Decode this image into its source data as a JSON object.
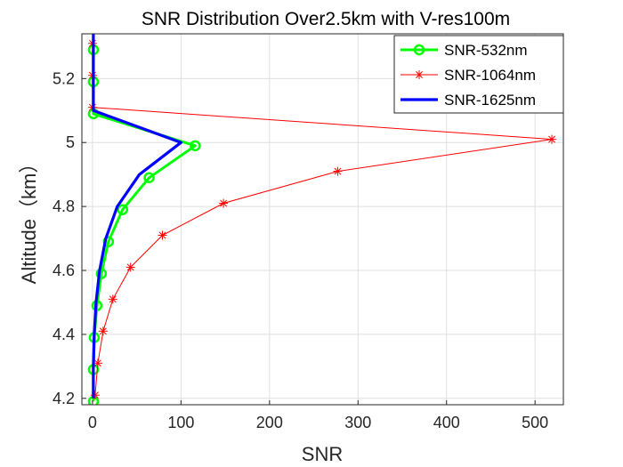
{
  "chart_data": {
    "type": "line",
    "title": "SNR Distribution Over2.5km with V-res100m",
    "xlabel": "SNR",
    "ylabel": "Altitude（km）",
    "xlim": [
      -12,
      532
    ],
    "ylim": [
      4.18,
      5.34
    ],
    "xticks": [
      0,
      100,
      200,
      300,
      400,
      500
    ],
    "yticks": [
      4.2,
      4.4,
      4.6,
      4.8,
      5.0,
      5.2
    ],
    "ytick_labels": [
      "4.2",
      "4.4",
      "4.6",
      "4.8",
      "5",
      "5.2"
    ],
    "grid": true,
    "legend_position": "top-right",
    "series": [
      {
        "name": "SNR-532nm",
        "color": "#00ff00",
        "marker": "circle",
        "points": [
          [
            1,
            4.19
          ],
          [
            1,
            4.29
          ],
          [
            2,
            4.39
          ],
          [
            5,
            4.49
          ],
          [
            10,
            4.59
          ],
          [
            18,
            4.69
          ],
          [
            34,
            4.79
          ],
          [
            64,
            4.89
          ],
          [
            116,
            4.99
          ],
          [
            1,
            5.09
          ],
          [
            1,
            5.19
          ],
          [
            1,
            5.29
          ]
        ]
      },
      {
        "name": "SNR-1064nm",
        "color": "#ff0000",
        "marker": "star",
        "points": [
          [
            3,
            4.21
          ],
          [
            6,
            4.31
          ],
          [
            12,
            4.41
          ],
          [
            23,
            4.51
          ],
          [
            43,
            4.61
          ],
          [
            79,
            4.71
          ],
          [
            148,
            4.81
          ],
          [
            277,
            4.91
          ],
          [
            519,
            5.01
          ],
          [
            0,
            5.11
          ],
          [
            0,
            5.21
          ],
          [
            0,
            5.31
          ]
        ]
      },
      {
        "name": "SNR-1625nm",
        "color": "#0000ff",
        "marker": "none",
        "points": [
          [
            1,
            4.2
          ],
          [
            1,
            4.3
          ],
          [
            2,
            4.4
          ],
          [
            4,
            4.5
          ],
          [
            8,
            4.6
          ],
          [
            15,
            4.7
          ],
          [
            28,
            4.8
          ],
          [
            53,
            4.9
          ],
          [
            100,
            5.0
          ],
          [
            1,
            5.1
          ],
          [
            1,
            5.2
          ],
          [
            1,
            5.35
          ]
        ]
      }
    ]
  }
}
